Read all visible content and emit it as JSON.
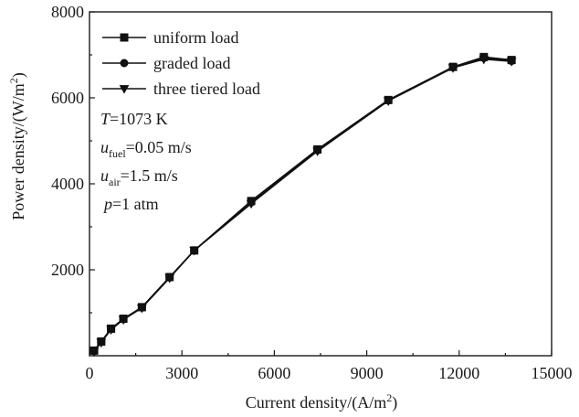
{
  "chart_data": {
    "type": "line",
    "title": "",
    "xlabel": {
      "main": "Current density/(A/m",
      "sup": "2",
      "close": ")"
    },
    "ylabel": {
      "main": "Power density/(W/m",
      "sup": "2",
      "close": ")"
    },
    "xlim": [
      0,
      15000
    ],
    "ylim": [
      0,
      8000
    ],
    "xticks": [
      0,
      3000,
      6000,
      9000,
      12000,
      15000
    ],
    "xtick_labels": [
      "0",
      "3000",
      "6000",
      "9000",
      "12000",
      "15000"
    ],
    "yticks": [
      2000,
      4000,
      6000,
      8000
    ],
    "ytick_labels": [
      "2000",
      "4000",
      "6000",
      "8000"
    ],
    "grid": false,
    "legend_position": "top-left",
    "series": [
      {
        "name": "uniform load",
        "marker": "square",
        "x": [
          150,
          380,
          700,
          1100,
          1700,
          2600,
          3400,
          5250,
          7400,
          9700,
          11800,
          12800,
          13700
        ],
        "y": [
          120,
          330,
          630,
          860,
          1130,
          1830,
          2450,
          3600,
          4800,
          5950,
          6720,
          6950,
          6880
        ]
      },
      {
        "name": "graded load",
        "marker": "circle",
        "x": [
          150,
          380,
          700,
          1100,
          1700,
          2600,
          3400,
          5250,
          7400,
          9700,
          11800,
          12800,
          13700
        ],
        "y": [
          110,
          320,
          620,
          850,
          1120,
          1820,
          2450,
          3570,
          4780,
          5940,
          6710,
          6930,
          6860
        ]
      },
      {
        "name": "three tiered load",
        "marker": "triangle-down",
        "x": [
          150,
          380,
          700,
          1100,
          1700,
          2600,
          3400,
          5250,
          7400,
          9700,
          11800,
          12800,
          13700
        ],
        "y": [
          100,
          310,
          610,
          840,
          1110,
          1810,
          2450,
          3540,
          4760,
          5930,
          6700,
          6900,
          6850
        ]
      }
    ],
    "annotations": [
      {
        "italic": "T",
        "sub": "",
        "rest": "=1073 K"
      },
      {
        "italic": "u",
        "sub": "fuel",
        "rest": "=0.05 m/s"
      },
      {
        "italic": "u",
        "sub": "air",
        "rest": "=1.5 m/s"
      },
      {
        "italic": "p",
        "sub": "",
        "rest": "=1 atm"
      }
    ]
  }
}
